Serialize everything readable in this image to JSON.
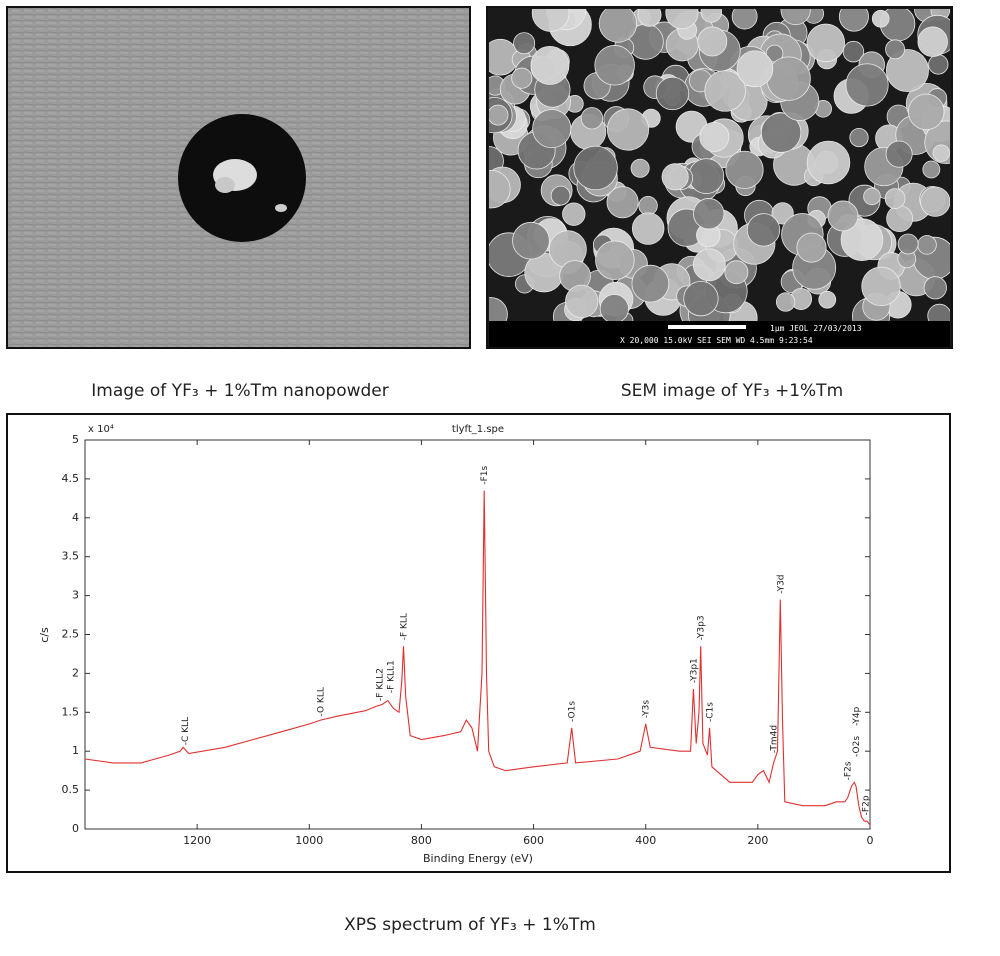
{
  "photos": {
    "left_caption": "Image of YF₃ + 1%Tm nanopowder",
    "right_caption": "SEM image of YF₃ +1%Tm",
    "sem_info": {
      "line1": "1μm   JEOL      27/03/2013",
      "line2": "X 20,000     15.0kV SEI     SEM      WD 4.5mm   9:23:54"
    }
  },
  "chart_caption": "XPS spectrum of YF₃ + 1%Tm",
  "chart_data": {
    "type": "line",
    "title": "tlyft_1.spe",
    "x_label": "Binding Energy (eV)",
    "y_label": "c/s",
    "y_multiplier": "x 10⁴",
    "color": "#e03030",
    "xlim": [
      1400,
      0
    ],
    "ylim": [
      0,
      5
    ],
    "xticks": [
      1200,
      1000,
      800,
      600,
      400,
      200,
      0
    ],
    "yticks": [
      0,
      0.5,
      1,
      1.5,
      2,
      2.5,
      3,
      3.5,
      4,
      4.5,
      5
    ],
    "x": [
      1400,
      1350,
      1300,
      1250,
      1230,
      1225,
      1215,
      1150,
      1100,
      1050,
      1000,
      980,
      950,
      900,
      880,
      870,
      860,
      850,
      840,
      835,
      832,
      828,
      820,
      800,
      760,
      730,
      720,
      710,
      700,
      692,
      688,
      684,
      680,
      670,
      650,
      600,
      540,
      532,
      525,
      450,
      410,
      400,
      392,
      340,
      320,
      315,
      310,
      305,
      302,
      298,
      290,
      286,
      282,
      250,
      210,
      200,
      190,
      180,
      172,
      165,
      160,
      156,
      152,
      120,
      80,
      60,
      45,
      40,
      33,
      28,
      25,
      20,
      15,
      10,
      5,
      0
    ],
    "values": [
      0.9,
      0.85,
      0.85,
      0.95,
      1.0,
      1.05,
      0.97,
      1.05,
      1.15,
      1.25,
      1.35,
      1.4,
      1.45,
      1.52,
      1.58,
      1.6,
      1.65,
      1.55,
      1.5,
      1.9,
      2.35,
      1.7,
      1.2,
      1.15,
      1.2,
      1.25,
      1.4,
      1.3,
      1.0,
      2.0,
      4.35,
      2.0,
      1.0,
      0.8,
      0.75,
      0.8,
      0.85,
      1.3,
      0.85,
      0.9,
      1.0,
      1.35,
      1.05,
      1.0,
      1.0,
      1.8,
      1.1,
      1.5,
      2.35,
      1.1,
      0.95,
      1.3,
      0.8,
      0.6,
      0.6,
      0.7,
      0.75,
      0.6,
      0.85,
      1.0,
      2.95,
      1.4,
      0.35,
      0.3,
      0.3,
      0.35,
      0.35,
      0.4,
      0.55,
      0.6,
      0.55,
      0.3,
      0.15,
      0.1,
      0.1,
      0.05
    ],
    "annotations": [
      {
        "text": "-C KLL",
        "x": 1222,
        "y": 1.05
      },
      {
        "text": "-O KLL",
        "x": 980,
        "y": 1.42
      },
      {
        "text": "-F KLL2",
        "x": 875,
        "y": 1.62
      },
      {
        "text": "-F KLL1",
        "x": 855,
        "y": 1.72
      },
      {
        "text": "-F KLL",
        "x": 832,
        "y": 2.4
      },
      {
        "text": "-F1s",
        "x": 688,
        "y": 4.4
      },
      {
        "text": "-O1s",
        "x": 532,
        "y": 1.35
      },
      {
        "text": "-Y3s",
        "x": 400,
        "y": 1.4
      },
      {
        "text": "-Y3p1",
        "x": 315,
        "y": 1.85
      },
      {
        "text": "-Y3p3",
        "x": 302,
        "y": 2.4
      },
      {
        "text": "-C1s",
        "x": 286,
        "y": 1.35
      },
      {
        "text": "-Tm4d",
        "x": 172,
        "y": 0.95
      },
      {
        "text": "-Y3d",
        "x": 160,
        "y": 3.0
      },
      {
        "text": "-F2s",
        "x": 40,
        "y": 0.6
      },
      {
        "text": "-O2s",
        "x": 25,
        "y": 0.9
      },
      {
        "text": "-Y4p",
        "x": 25,
        "y": 1.3
      },
      {
        "text": "-F2p",
        "x": 8,
        "y": 0.15
      }
    ]
  }
}
